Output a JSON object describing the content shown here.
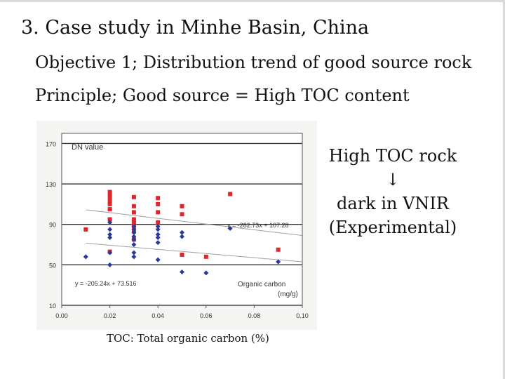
{
  "slide": {
    "title": "3. Case study in Minhe Basin, China",
    "objective": "Objective 1; Distribution trend of good source rock",
    "principle": "Principle; Good source = High TOC content",
    "side_note": {
      "line1": "High TOC rock",
      "arrow": "↓",
      "line2": "dark in VNIR",
      "line3": "(Experimental)"
    },
    "caption": "TOC: Total organic carbon (%)"
  },
  "chart_data": {
    "type": "scatter",
    "title": "DN value",
    "xlabel": "Organic carbon (mg/g)",
    "xlabel_line1": "Organic carbon",
    "xlabel_line2": "(mg/g)",
    "ylabel": "",
    "xlim": [
      0,
      0.1
    ],
    "ylim": [
      10,
      180
    ],
    "xticks": [
      "0.00",
      "0.02",
      "0.04",
      "0.06",
      "0.08",
      "0.10"
    ],
    "yticks": [
      "170",
      "130",
      "90",
      "50",
      "10"
    ],
    "ytick_values": [
      170,
      130,
      90,
      50,
      10
    ],
    "xtick_values": [
      0,
      0.02,
      0.04,
      0.06,
      0.08,
      0.1
    ],
    "grid": "horizontal",
    "series": [
      {
        "color": "#e0262b",
        "marker": "square",
        "x": [
          0.01,
          0.02,
          0.02,
          0.02,
          0.02,
          0.02,
          0.02,
          0.02,
          0.03,
          0.03,
          0.03,
          0.03,
          0.03,
          0.03,
          0.03,
          0.03,
          0.04,
          0.04,
          0.04,
          0.04,
          0.05,
          0.05,
          0.05,
          0.06,
          0.07,
          0.09
        ],
        "y": [
          85,
          122,
          118,
          114,
          110,
          105,
          95,
          63,
          117,
          108,
          102,
          95,
          92,
          88,
          83,
          75,
          116,
          110,
          102,
          92,
          108,
          100,
          60,
          58,
          120,
          65
        ]
      },
      {
        "color": "#2b3a9a",
        "marker": "diamond",
        "x": [
          0.01,
          0.02,
          0.02,
          0.02,
          0.02,
          0.02,
          0.02,
          0.03,
          0.03,
          0.03,
          0.03,
          0.03,
          0.03,
          0.03,
          0.03,
          0.04,
          0.04,
          0.04,
          0.04,
          0.04,
          0.04,
          0.05,
          0.05,
          0.05,
          0.06,
          0.07,
          0.09
        ],
        "y": [
          58,
          92,
          85,
          80,
          77,
          62,
          50,
          88,
          85,
          82,
          78,
          75,
          70,
          62,
          58,
          88,
          85,
          80,
          77,
          72,
          55,
          82,
          78,
          43,
          42,
          86,
          53
        ]
      }
    ],
    "trendlines": [
      {
        "color": "#a0a0a0",
        "label": "y = -282.73x + 107.28",
        "slope": -282.73,
        "intercept": 107.28
      },
      {
        "color": "#a0a0a0",
        "label": "y = -205.24x + 73.516",
        "slope": -205.24,
        "intercept": 73.516
      }
    ]
  }
}
